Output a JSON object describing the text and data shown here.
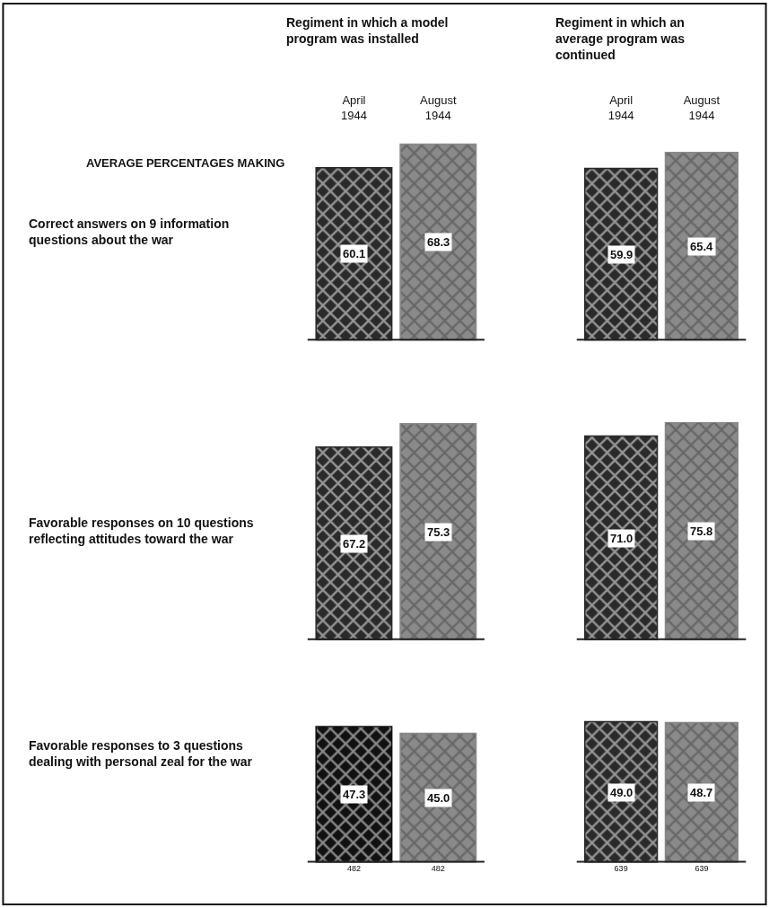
{
  "chart_data": [
    {
      "type": "bar",
      "title": "Regiment in which a model\nprogram was installed",
      "ylabel": "Correct answers on 9 information\nquestions about the war",
      "annotations": [
        "AVERAGE PERCENTAGES MAKING"
      ],
      "categories": [
        "April\n1944",
        "August\n1944"
      ],
      "values": [
        60.1,
        68.3
      ],
      "value_labels": [
        "60.1",
        "68.3"
      ],
      "colors": [
        "#2a2a2a",
        "#8a8a8a"
      ],
      "tick_labels": "x"
    },
    {
      "type": "bar",
      "title": "Regiment in which an\naverage program was\ncontinued",
      "categories": [
        "April\n1944",
        "August\n1944"
      ],
      "values": [
        59.9,
        65.4
      ],
      "value_labels": [
        "59.9",
        "65.4"
      ],
      "colors": [
        "#2a2a2a",
        "#8a8a8a"
      ],
      "tick_labels": "x"
    },
    {
      "type": "bar",
      "ylabel": "Favorable responses on 10 questions\nreflecting attitudes toward the war",
      "categories": [
        null,
        null
      ],
      "values": [
        67.2,
        75.3
      ],
      "value_labels": [
        "67.2",
        "75.3"
      ],
      "colors": [
        "#2a2a2a",
        "#8a8a8a"
      ],
      "tick_labels": false
    },
    {
      "type": "bar",
      "categories": [
        null,
        null
      ],
      "values": [
        71.0,
        75.8
      ],
      "value_labels": [
        "71.0",
        "75.8"
      ],
      "colors": [
        "#2a2a2a",
        "#8a8a8a"
      ],
      "tick_labels": false
    },
    {
      "type": "bar",
      "ylabel": "Favorable responses to 3 questions\ndealing with personal zeal for the war",
      "categories": [
        "482",
        "482"
      ],
      "values": [
        47.3,
        45.0
      ],
      "value_labels": [
        "47.3",
        "45.0"
      ],
      "colors": [
        "#111111",
        "#8a8a8a"
      ],
      "tick_labels": "x"
    },
    {
      "type": "bar",
      "categories": [
        "639",
        "639"
      ],
      "values": [
        49.0,
        48.7
      ],
      "value_labels": [
        "49.0",
        "48.7"
      ],
      "colors": [
        "#2a2a2a",
        "#8a8a8a"
      ],
      "tick_labels": "x"
    }
  ]
}
